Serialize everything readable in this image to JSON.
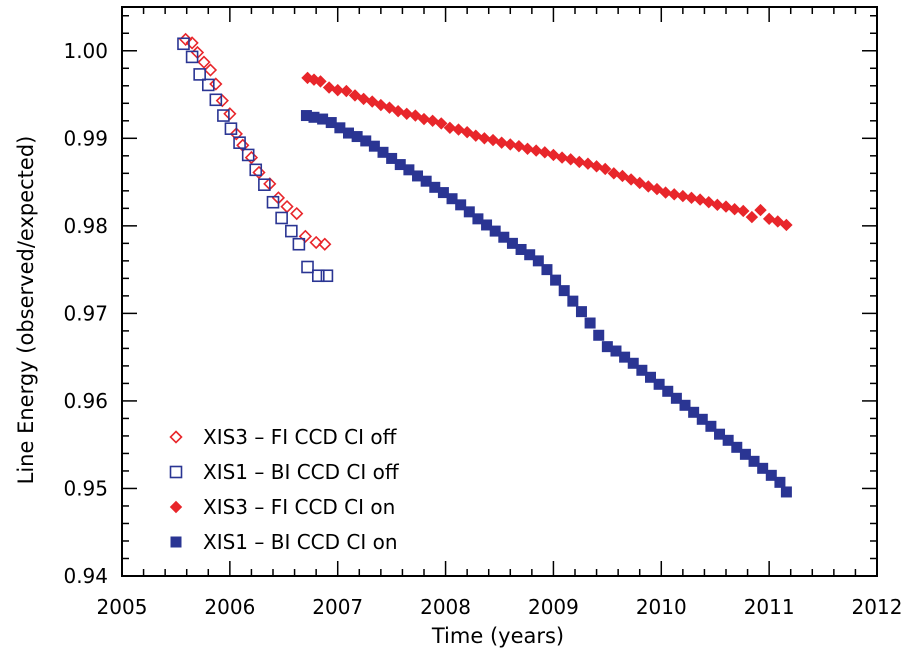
{
  "chart_data": {
    "type": "scatter",
    "title": "",
    "xlabel": "Time (years)",
    "ylabel": "Line Energy (observed/expected)",
    "xlim": [
      2005,
      2012
    ],
    "ylim": [
      0.94,
      1.005
    ],
    "xticks": [
      2005,
      2006,
      2007,
      2008,
      2009,
      2010,
      2011,
      2012
    ],
    "yticks": [
      0.94,
      0.95,
      0.96,
      0.97,
      0.98,
      0.99,
      1.0
    ],
    "xtick_labels": [
      "2005",
      "2006",
      "2007",
      "2008",
      "2009",
      "2010",
      "2011",
      "2012"
    ],
    "ytick_labels": [
      "0.94",
      "0.95",
      "0.96",
      "0.97",
      "0.98",
      "0.99",
      "1.00"
    ],
    "legend_position": "bottom-left",
    "grid": false,
    "series": [
      {
        "name": "XIS3 – FI CCD CI off",
        "marker": "diamond-open",
        "color": "#e8262b",
        "x": [
          2005.59,
          2005.65,
          2005.7,
          2005.76,
          2005.82,
          2005.87,
          2005.93,
          2006.0,
          2006.06,
          2006.12,
          2006.2,
          2006.27,
          2006.37,
          2006.45,
          2006.53,
          2006.62,
          2006.7,
          2006.8,
          2006.88
        ],
        "y": [
          1.0013,
          1.0009,
          0.9998,
          0.9987,
          0.9978,
          0.9962,
          0.9943,
          0.9928,
          0.9905,
          0.9892,
          0.9878,
          0.9861,
          0.9848,
          0.9832,
          0.9822,
          0.9814,
          0.9788,
          0.9781,
          0.9779
        ]
      },
      {
        "name": "XIS1 – BI CCD CI off",
        "marker": "square-open",
        "color": "#2a3593",
        "x": [
          2005.57,
          2005.65,
          2005.72,
          2005.8,
          2005.87,
          2005.94,
          2006.01,
          2006.09,
          2006.17,
          2006.24,
          2006.32,
          2006.4,
          2006.48,
          2006.57,
          2006.64,
          2006.72,
          2006.82,
          2006.9
        ],
        "y": [
          1.0008,
          0.9993,
          0.9973,
          0.9961,
          0.9944,
          0.9926,
          0.9911,
          0.9895,
          0.9881,
          0.9864,
          0.9847,
          0.9827,
          0.9809,
          0.9794,
          0.9779,
          0.9753,
          0.9743,
          0.9743
        ]
      },
      {
        "name": "XIS3 – FI CCD CI on",
        "marker": "diamond-filled",
        "color": "#e8262b",
        "x": [
          2006.72,
          2006.78,
          2006.84,
          2006.92,
          2007.0,
          2007.08,
          2007.16,
          2007.24,
          2007.32,
          2007.4,
          2007.48,
          2007.56,
          2007.64,
          2007.72,
          2007.8,
          2007.88,
          2007.96,
          2008.04,
          2008.12,
          2008.2,
          2008.28,
          2008.36,
          2008.44,
          2008.52,
          2008.6,
          2008.68,
          2008.76,
          2008.84,
          2008.92,
          2009.0,
          2009.08,
          2009.16,
          2009.24,
          2009.32,
          2009.4,
          2009.48,
          2009.56,
          2009.64,
          2009.72,
          2009.8,
          2009.88,
          2009.96,
          2010.04,
          2010.12,
          2010.2,
          2010.28,
          2010.36,
          2010.44,
          2010.52,
          2010.6,
          2010.68,
          2010.76,
          2010.84,
          2010.92,
          2011.0,
          2011.08,
          2011.16
        ],
        "y": [
          0.9969,
          0.9967,
          0.9965,
          0.9958,
          0.9955,
          0.9954,
          0.9949,
          0.9945,
          0.9942,
          0.9938,
          0.9935,
          0.9931,
          0.9928,
          0.9926,
          0.9922,
          0.992,
          0.9917,
          0.9912,
          0.991,
          0.9907,
          0.9903,
          0.99,
          0.9898,
          0.9895,
          0.9893,
          0.9891,
          0.9888,
          0.9886,
          0.9884,
          0.9881,
          0.9878,
          0.9876,
          0.9873,
          0.9871,
          0.9868,
          0.9865,
          0.986,
          0.9857,
          0.9853,
          0.9849,
          0.9845,
          0.9842,
          0.9838,
          0.9836,
          0.9834,
          0.9832,
          0.983,
          0.9827,
          0.9824,
          0.9822,
          0.9819,
          0.9817,
          0.981,
          0.9818,
          0.9808,
          0.9805,
          0.9801
        ]
      },
      {
        "name": "XIS1 – BI CCD CI on",
        "marker": "square-filled",
        "color": "#2a3593",
        "x": [
          2006.71,
          2006.78,
          2006.86,
          2006.94,
          2007.02,
          2007.1,
          2007.18,
          2007.26,
          2007.34,
          2007.42,
          2007.5,
          2007.58,
          2007.66,
          2007.74,
          2007.82,
          2007.9,
          2007.98,
          2008.06,
          2008.14,
          2008.22,
          2008.3,
          2008.38,
          2008.46,
          2008.54,
          2008.62,
          2008.7,
          2008.78,
          2008.86,
          2008.94,
          2009.02,
          2009.1,
          2009.18,
          2009.26,
          2009.34,
          2009.42,
          2009.5,
          2009.58,
          2009.66,
          2009.74,
          2009.82,
          2009.9,
          2009.98,
          2010.06,
          2010.14,
          2010.22,
          2010.3,
          2010.38,
          2010.46,
          2010.54,
          2010.62,
          2010.7,
          2010.78,
          2010.86,
          2010.94,
          2011.02,
          2011.1,
          2011.16
        ],
        "y": [
          0.9926,
          0.9924,
          0.9922,
          0.9918,
          0.9912,
          0.9906,
          0.9902,
          0.9897,
          0.9891,
          0.9884,
          0.9877,
          0.987,
          0.9864,
          0.9857,
          0.9851,
          0.9844,
          0.9838,
          0.9831,
          0.9824,
          0.9816,
          0.9808,
          0.9801,
          0.9794,
          0.9787,
          0.978,
          0.9773,
          0.9767,
          0.976,
          0.975,
          0.9738,
          0.9726,
          0.9714,
          0.9702,
          0.9689,
          0.9675,
          0.9662,
          0.9657,
          0.965,
          0.9643,
          0.9635,
          0.9627,
          0.9619,
          0.9611,
          0.9603,
          0.9595,
          0.9587,
          0.9579,
          0.9571,
          0.9562,
          0.9555,
          0.9547,
          0.9539,
          0.9531,
          0.9523,
          0.9515,
          0.9507,
          0.9496
        ]
      }
    ]
  }
}
